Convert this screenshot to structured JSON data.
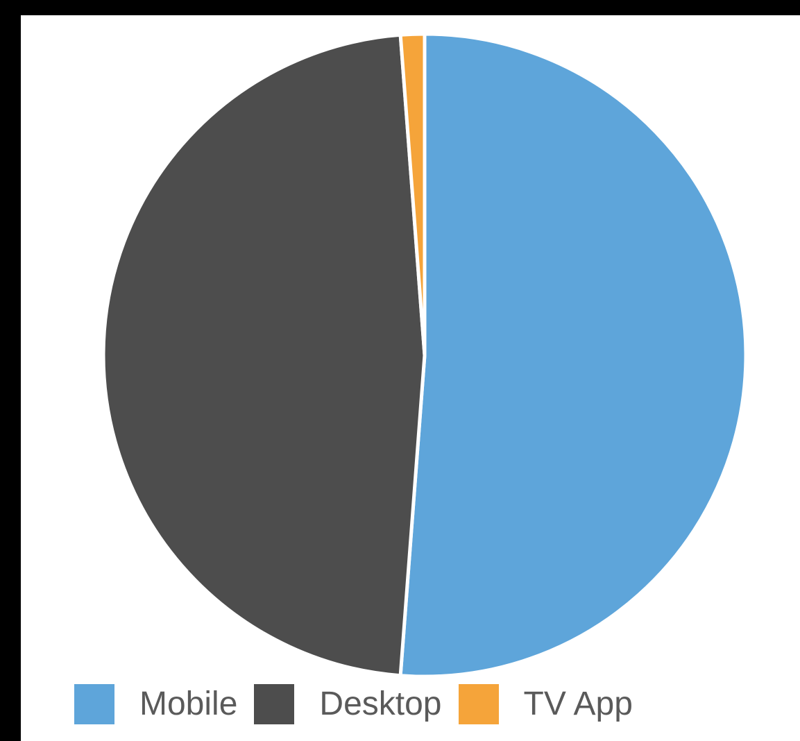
{
  "chart_data": {
    "type": "pie",
    "title": "",
    "categories": [
      "Mobile",
      "Desktop",
      "TV App"
    ],
    "values": [
      51.2,
      47.6,
      1.2
    ],
    "colors": [
      "#5ea5da",
      "#4d4d4d",
      "#f5a43a"
    ],
    "start_angle_deg": 0,
    "direction": "clockwise",
    "legend_position": "bottom"
  }
}
